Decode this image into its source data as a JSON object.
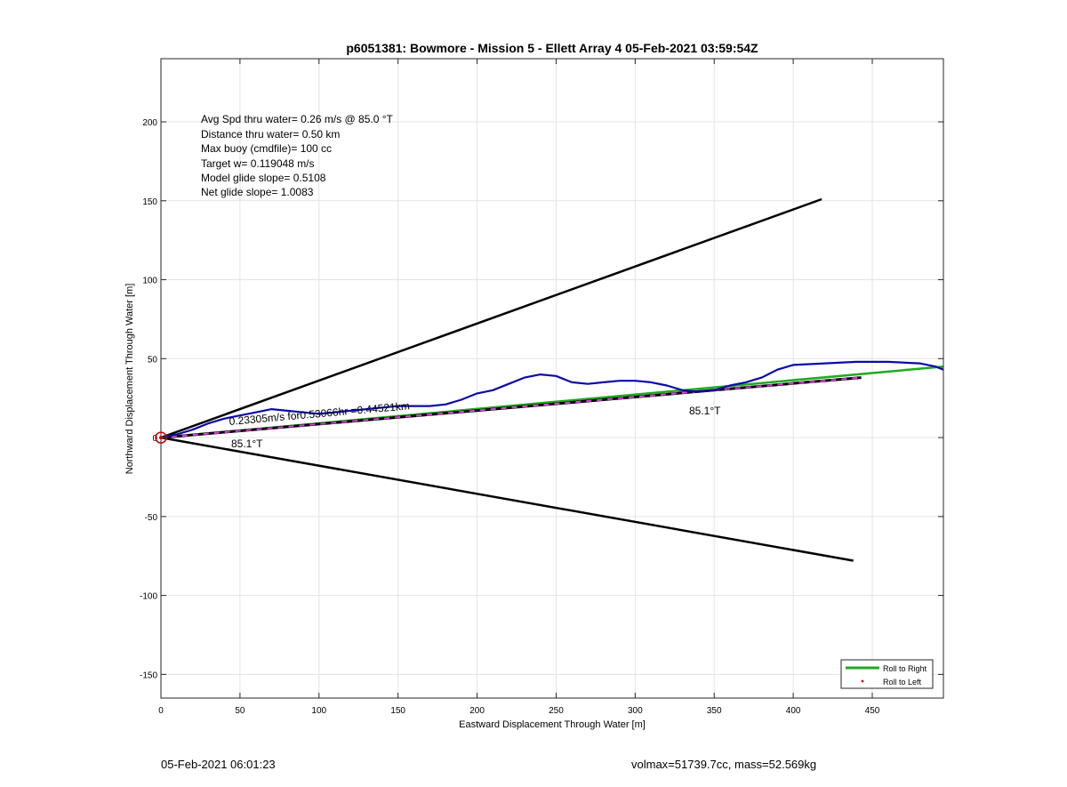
{
  "chart_data": {
    "type": "line",
    "title": "p6051381: Bowmore - Mission 5 - Ellett Array 4 05-Feb-2021 03:59:54Z",
    "xlabel": "Eastward Displacement Through Water [m]",
    "ylabel": "Northward Displacement Through Water [m]",
    "xlim": [
      0,
      495
    ],
    "ylim": [
      -165,
      240
    ],
    "xticks": [
      0,
      50,
      100,
      150,
      200,
      250,
      300,
      350,
      400,
      450
    ],
    "yticks": [
      -150,
      -100,
      -50,
      0,
      50,
      100,
      150,
      200
    ],
    "grid": true,
    "legend": {
      "placement": "bottom-right",
      "entries": [
        "Roll to Right",
        "Roll to Left"
      ]
    },
    "stats_lines": [
      "Avg Spd thru water=  0.26 m/s @  85.0 °T",
      "Distance thru water=  0.50 km",
      "Max buoy (cmdfile)= 100 cc",
      "Target w= 0.119048 m/s",
      "Model glide slope= 0.5108",
      "Net glide slope= 1.0083"
    ],
    "annotations": {
      "speed_label": "0.23305m/s for0.53066hr =0.44521km",
      "heading_label_1": "85.1°T",
      "heading_label_2": "85.1°T"
    },
    "series": [
      {
        "color": "#0a0aa8",
        "style": "track",
        "x": [
          0,
          10,
          20,
          30,
          40,
          50,
          60,
          70,
          80,
          90,
          100,
          110,
          120,
          130,
          140,
          150,
          160,
          170,
          180,
          190,
          200,
          210,
          220,
          230,
          240,
          250,
          260,
          270,
          280,
          290,
          300,
          310,
          320,
          330,
          340,
          350,
          360,
          370,
          380,
          390,
          400,
          420,
          440,
          460,
          480,
          490,
          495
        ],
        "y": [
          0,
          2,
          5,
          9,
          12,
          14,
          16,
          18,
          17,
          16,
          15,
          16,
          17,
          18,
          19,
          20,
          20,
          20,
          21,
          24,
          28,
          30,
          34,
          38,
          40,
          39,
          35,
          34,
          35,
          36,
          36,
          35,
          33,
          30,
          29,
          30,
          33,
          35,
          38,
          43,
          46,
          47,
          48,
          48,
          47,
          45,
          43
        ]
      },
      {
        "color": "#1faa1f",
        "style": "solid",
        "x": [
          0,
          495
        ],
        "y": [
          0,
          45
        ]
      },
      {
        "color": "#000000",
        "style": "dashed-magenta",
        "x": [
          0,
          443
        ],
        "y": [
          0,
          38
        ]
      },
      {
        "color": "#000000",
        "style": "solid",
        "x": [
          0,
          418
        ],
        "y": [
          0,
          151
        ]
      },
      {
        "color": "#000000",
        "style": "solid",
        "x": [
          0,
          438
        ],
        "y": [
          0,
          -78
        ]
      }
    ],
    "start_marker": {
      "x": 0,
      "y": 0,
      "color": "#cc0000"
    }
  },
  "footer": {
    "timestamp": "05-Feb-2021 06:01:23",
    "mass_info": "volmax=51739.7cc, mass=52.569kg"
  }
}
